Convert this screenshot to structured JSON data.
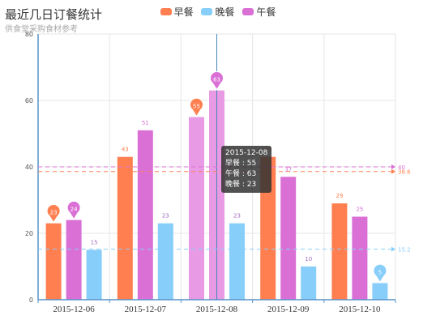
{
  "title": "最近几日订餐统计",
  "subtitle": "供食堂采购食材参考",
  "legend": [
    {
      "name": "早餐",
      "color": "#ff7f50"
    },
    {
      "name": "晚餐",
      "color": "#87cefa"
    },
    {
      "name": "午餐",
      "color": "#da70d6"
    }
  ],
  "tooltip": {
    "title": "2015-12-08",
    "line1": "早餐 : 55",
    "line2": "午餐 : 63",
    "line3": "晚餐 : 23"
  },
  "chart_data": {
    "type": "bar",
    "categories": [
      "2015-12-06",
      "2015-12-07",
      "2015-12-08",
      "2015-12-09",
      "2015-12-10"
    ],
    "series": [
      {
        "name": "早餐",
        "color": "#ff7f50",
        "values": [
          23,
          43,
          55,
          43,
          29
        ],
        "max": 55,
        "average": 38.6
      },
      {
        "name": "午餐",
        "color": "#da70d6",
        "values": [
          24,
          51,
          63,
          37,
          25
        ],
        "max": 63,
        "average": 40
      },
      {
        "name": "晚餐",
        "color": "#87cefa",
        "values": [
          15,
          23,
          23,
          10,
          5
        ],
        "min": 5,
        "average": 15.2
      }
    ],
    "ylim": [
      0,
      80
    ],
    "yticks": [
      0,
      20,
      40,
      60,
      80
    ],
    "highlight_category": "2015-12-08",
    "grid": true,
    "legend_position": "top-center"
  }
}
